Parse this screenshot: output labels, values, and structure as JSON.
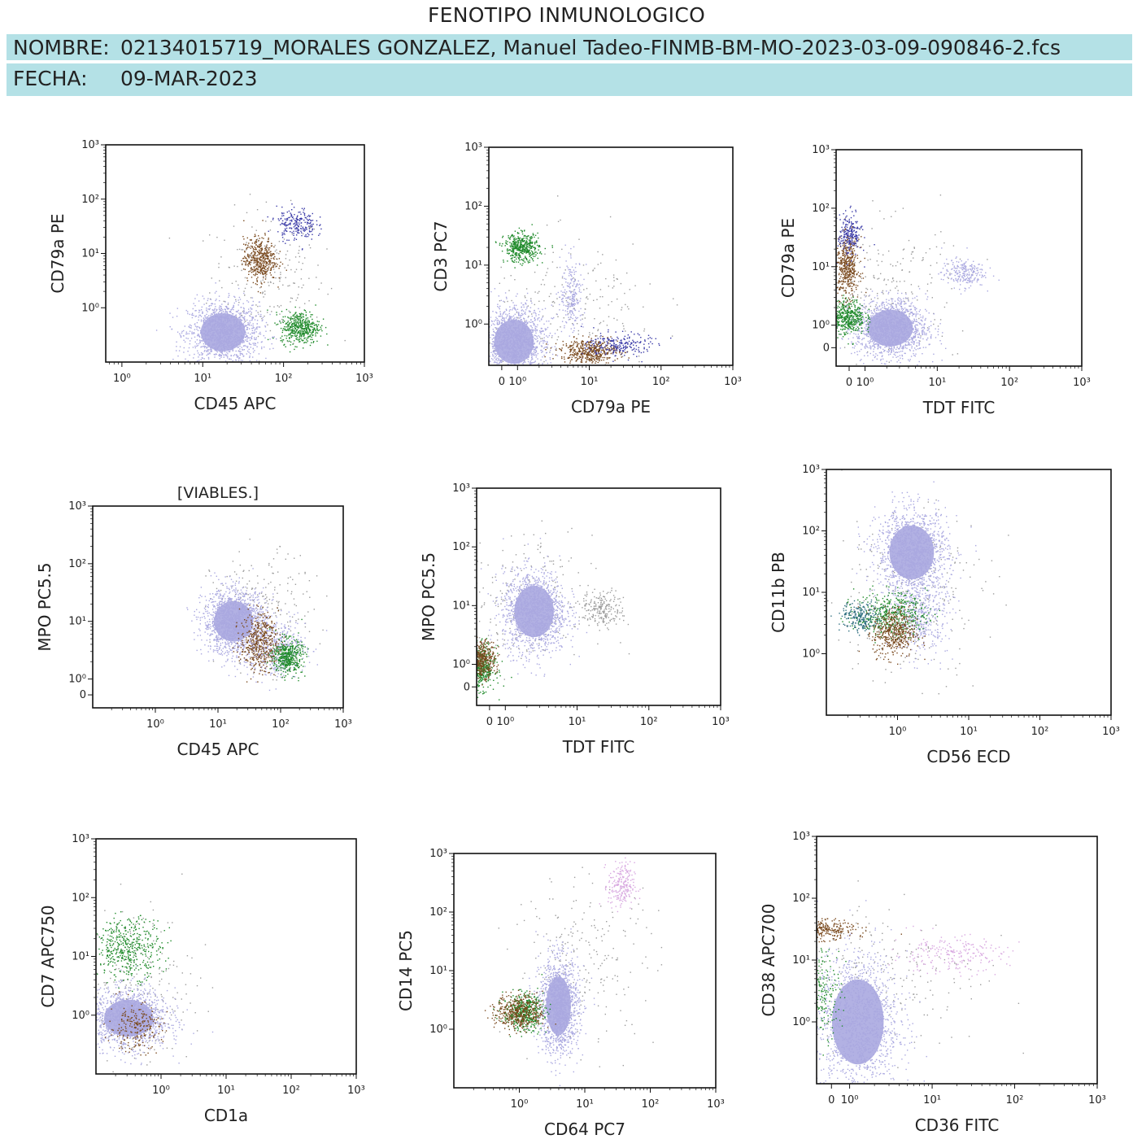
{
  "header": {
    "title": "FENOTIPO INMUNOLOGICO",
    "name_label": "NOMBRE:",
    "name_value": "02134015719_MORALES GONZALEZ, Manuel Tadeo-FINMB-BM-MO-2023-03-09-090846-2.fcs",
    "date_label": "FECHA:",
    "date_value": "09-MAR-2023"
  },
  "colors": {
    "lightpurple": "#aaa8e0",
    "gray": "#9c9c9c",
    "blue": "#3b3ba8",
    "brown": "#7a4a1f",
    "green": "#1f8a2a",
    "pink": "#d8a8e0",
    "teal": "#2f6f80"
  },
  "chart_data": [
    {
      "type": "scatter",
      "title": "",
      "xlabel": "CD45 APC",
      "ylabel": "CD79a PE",
      "scale": "log",
      "xlim": [
        -0.2,
        3
      ],
      "ylim": [
        -1,
        3
      ],
      "xticks": [
        "10⁰",
        "10¹",
        "10²",
        "10³"
      ],
      "yticks": [
        "10⁰",
        "10¹",
        "10²",
        "10³"
      ],
      "populations": [
        {
          "color": "lightpurple",
          "center": [
            1.25,
            -0.45
          ],
          "spread": [
            0.22,
            0.28
          ],
          "density": "high"
        },
        {
          "color": "green",
          "center": [
            2.2,
            -0.35
          ],
          "spread": [
            0.12,
            0.15
          ],
          "density": "medium"
        },
        {
          "color": "brown",
          "center": [
            1.7,
            0.9
          ],
          "spread": [
            0.1,
            0.2
          ],
          "density": "medium"
        },
        {
          "color": "blue",
          "center": [
            2.15,
            1.55
          ],
          "spread": [
            0.12,
            0.15
          ],
          "density": "low"
        },
        {
          "color": "gray",
          "center": [
            1.8,
            0.6
          ],
          "spread": [
            0.35,
            0.6
          ],
          "density": "low"
        }
      ]
    },
    {
      "type": "scatter",
      "title": "",
      "xlabel": "CD79a PE",
      "ylabel": "CD3 PC7",
      "scale": "biexponential",
      "xlim": [
        -0.4,
        3
      ],
      "ylim": [
        -0.7,
        3
      ],
      "xticks": [
        "0",
        "10⁰",
        "10¹",
        "10²",
        "10³"
      ],
      "yticks": [
        "10⁰",
        "10¹",
        "10²",
        "10³"
      ],
      "populations": [
        {
          "color": "lightpurple",
          "center": [
            -0.05,
            -0.3
          ],
          "spread": [
            0.22,
            0.3
          ],
          "density": "high"
        },
        {
          "color": "green",
          "center": [
            0.05,
            1.3
          ],
          "spread": [
            0.12,
            0.12
          ],
          "density": "medium"
        },
        {
          "color": "brown",
          "center": [
            1.0,
            -0.45
          ],
          "spread": [
            0.2,
            0.1
          ],
          "density": "medium"
        },
        {
          "color": "blue",
          "center": [
            1.4,
            -0.35
          ],
          "spread": [
            0.22,
            0.1
          ],
          "density": "low"
        },
        {
          "color": "lightpurple",
          "center": [
            0.75,
            0.5
          ],
          "spread": [
            0.08,
            0.3
          ],
          "density": "low"
        },
        {
          "color": "gray",
          "center": [
            0.8,
            0.2
          ],
          "spread": [
            0.6,
            0.6
          ],
          "density": "low"
        }
      ]
    },
    {
      "type": "scatter",
      "title": "",
      "xlabel": "TDT FITC",
      "ylabel": "CD79a PE",
      "scale": "biexponential",
      "xlim": [
        -0.4,
        3
      ],
      "ylim": [
        -0.7,
        3
      ],
      "xticks": [
        "0",
        "10⁰",
        "10¹",
        "10²",
        "10³"
      ],
      "yticks": [
        "0",
        "10⁰",
        "10¹",
        "10²",
        "10³"
      ],
      "populations": [
        {
          "color": "lightpurple",
          "center": [
            0.35,
            -0.05
          ],
          "spread": [
            0.25,
            0.25
          ],
          "density": "high"
        },
        {
          "color": "green",
          "center": [
            -0.25,
            0.15
          ],
          "spread": [
            0.12,
            0.15
          ],
          "density": "medium"
        },
        {
          "color": "brown",
          "center": [
            -0.25,
            1.0
          ],
          "spread": [
            0.08,
            0.25
          ],
          "density": "medium"
        },
        {
          "color": "blue",
          "center": [
            -0.22,
            1.55
          ],
          "spread": [
            0.08,
            0.18
          ],
          "density": "low"
        },
        {
          "color": "lightpurple",
          "center": [
            1.35,
            0.9
          ],
          "spread": [
            0.15,
            0.12
          ],
          "density": "low"
        },
        {
          "color": "gray",
          "center": [
            0.3,
            0.6
          ],
          "spread": [
            0.5,
            0.6
          ],
          "density": "low"
        }
      ]
    },
    {
      "type": "scatter",
      "title": "[VIABLES.]",
      "xlabel": "CD45 APC",
      "ylabel": "MPO PC5.5",
      "scale": "biexponential",
      "xlim": [
        -1,
        3
      ],
      "ylim": [
        -0.5,
        3
      ],
      "xticks": [
        "10⁰",
        "10¹",
        "10²",
        "10³"
      ],
      "yticks": [
        "0",
        "10⁰",
        "10¹",
        "10²",
        "10³"
      ],
      "populations": [
        {
          "color": "lightpurple",
          "center": [
            1.25,
            1.0
          ],
          "spread": [
            0.25,
            0.28
          ],
          "density": "high"
        },
        {
          "color": "lightpurple",
          "center": [
            1.9,
            0.55
          ],
          "spread": [
            0.25,
            0.25
          ],
          "density": "medium"
        },
        {
          "color": "green",
          "center": [
            2.1,
            0.4
          ],
          "spread": [
            0.12,
            0.15
          ],
          "density": "medium"
        },
        {
          "color": "brown",
          "center": [
            1.65,
            0.65
          ],
          "spread": [
            0.15,
            0.25
          ],
          "density": "medium"
        },
        {
          "color": "gray",
          "center": [
            1.7,
            1.2
          ],
          "spread": [
            0.4,
            0.5
          ],
          "density": "low"
        }
      ]
    },
    {
      "type": "scatter",
      "title": "",
      "xlabel": "TDT FITC",
      "ylabel": "MPO PC5.5",
      "scale": "biexponential",
      "xlim": [
        -0.4,
        3
      ],
      "ylim": [
        -0.7,
        3
      ],
      "xticks": [
        "0",
        "10⁰",
        "10¹",
        "10²",
        "10³"
      ],
      "yticks": [
        "0",
        "10⁰",
        "10¹",
        "10²",
        "10³"
      ],
      "populations": [
        {
          "color": "lightpurple",
          "center": [
            0.4,
            0.9
          ],
          "spread": [
            0.22,
            0.35
          ],
          "density": "high"
        },
        {
          "color": "green",
          "center": [
            -0.35,
            -0.05
          ],
          "spread": [
            0.1,
            0.18
          ],
          "density": "medium"
        },
        {
          "color": "brown",
          "center": [
            -0.35,
            0.1
          ],
          "spread": [
            0.1,
            0.15
          ],
          "density": "medium"
        },
        {
          "color": "gray",
          "center": [
            1.35,
            0.95
          ],
          "spread": [
            0.15,
            0.15
          ],
          "density": "low"
        },
        {
          "color": "gray",
          "center": [
            0.2,
            1.0
          ],
          "spread": [
            0.5,
            0.6
          ],
          "density": "low"
        }
      ]
    },
    {
      "type": "scatter",
      "title": "",
      "xlabel": "CD56 ECD",
      "ylabel": "CD11b PB",
      "scale": "log",
      "xlim": [
        -1,
        3
      ],
      "ylim": [
        -1,
        3
      ],
      "xticks": [
        "10⁰",
        "10¹",
        "10²",
        "10³"
      ],
      "yticks": [
        "10⁰",
        "10¹",
        "10²",
        "10³"
      ],
      "populations": [
        {
          "color": "lightpurple",
          "center": [
            0.2,
            1.65
          ],
          "spread": [
            0.25,
            0.35
          ],
          "density": "high"
        },
        {
          "color": "lightpurple",
          "center": [
            0.3,
            0.6
          ],
          "spread": [
            0.2,
            0.3
          ],
          "density": "medium"
        },
        {
          "color": "green",
          "center": [
            -0.1,
            0.65
          ],
          "spread": [
            0.25,
            0.18
          ],
          "density": "medium"
        },
        {
          "color": "teal",
          "center": [
            -0.5,
            0.6
          ],
          "spread": [
            0.15,
            0.12
          ],
          "density": "low"
        },
        {
          "color": "brown",
          "center": [
            -0.05,
            0.35
          ],
          "spread": [
            0.15,
            0.2
          ],
          "density": "medium"
        },
        {
          "color": "gray",
          "center": [
            0.1,
            1.0
          ],
          "spread": [
            0.6,
            0.7
          ],
          "density": "low"
        }
      ]
    },
    {
      "type": "scatter",
      "title": "",
      "xlabel": "CD1a",
      "ylabel": "CD7 APC750",
      "scale": "log",
      "xlim": [
        -1,
        3
      ],
      "ylim": [
        -1,
        3
      ],
      "xticks": [
        "10⁰",
        "10¹",
        "10²",
        "10³"
      ],
      "yticks": [
        "10⁰",
        "10¹",
        "10²",
        "10³"
      ],
      "populations": [
        {
          "color": "lightpurple",
          "center": [
            -0.5,
            -0.05
          ],
          "spread": [
            0.3,
            0.25
          ],
          "density": "high"
        },
        {
          "color": "green",
          "center": [
            -0.5,
            1.15
          ],
          "spread": [
            0.25,
            0.25
          ],
          "density": "medium"
        },
        {
          "color": "brown",
          "center": [
            -0.4,
            -0.2
          ],
          "spread": [
            0.2,
            0.2
          ],
          "density": "low"
        },
        {
          "color": "gray",
          "center": [
            -0.4,
            0.5
          ],
          "spread": [
            0.45,
            0.7
          ],
          "density": "low"
        }
      ]
    },
    {
      "type": "scatter",
      "title": "",
      "xlabel": "CD64 PC7",
      "ylabel": "CD14 PC5",
      "scale": "log",
      "xlim": [
        -1,
        3
      ],
      "ylim": [
        -1,
        3
      ],
      "xticks": [
        "10⁰",
        "10¹",
        "10²",
        "10³"
      ],
      "yticks": [
        "10⁰",
        "10¹",
        "10²",
        "10³"
      ],
      "populations": [
        {
          "color": "lightpurple",
          "center": [
            0.6,
            0.4
          ],
          "spread": [
            0.15,
            0.4
          ],
          "density": "high"
        },
        {
          "color": "green",
          "center": [
            0.05,
            0.3
          ],
          "spread": [
            0.15,
            0.15
          ],
          "density": "medium"
        },
        {
          "color": "brown",
          "center": [
            0.0,
            0.3
          ],
          "spread": [
            0.18,
            0.15
          ],
          "density": "medium"
        },
        {
          "color": "pink",
          "center": [
            1.55,
            2.45
          ],
          "spread": [
            0.1,
            0.2
          ],
          "density": "low"
        },
        {
          "color": "gray",
          "center": [
            1.0,
            1.2
          ],
          "spread": [
            0.55,
            0.7
          ],
          "density": "low"
        }
      ]
    },
    {
      "type": "scatter",
      "title": "",
      "xlabel": "CD36 FITC",
      "ylabel": "CD38 APC700",
      "scale": "biexponential",
      "xlim": [
        -0.4,
        3
      ],
      "ylim": [
        -1,
        3
      ],
      "xticks": [
        "0",
        "10⁰",
        "10¹",
        "10²",
        "10³"
      ],
      "yticks": [
        "10⁰",
        "10¹",
        "10²",
        "10³"
      ],
      "populations": [
        {
          "color": "lightpurple",
          "center": [
            0.1,
            0.0
          ],
          "spread": [
            0.25,
            0.55
          ],
          "density": "high"
        },
        {
          "color": "brown",
          "center": [
            -0.45,
            1.5
          ],
          "spread": [
            0.25,
            0.08
          ],
          "density": "medium"
        },
        {
          "color": "green",
          "center": [
            -0.35,
            0.5
          ],
          "spread": [
            0.12,
            0.35
          ],
          "density": "low"
        },
        {
          "color": "pink",
          "center": [
            1.2,
            1.1
          ],
          "spread": [
            0.35,
            0.15
          ],
          "density": "low"
        },
        {
          "color": "gray",
          "center": [
            0.4,
            0.8
          ],
          "spread": [
            0.6,
            0.6
          ],
          "density": "low"
        }
      ]
    }
  ]
}
